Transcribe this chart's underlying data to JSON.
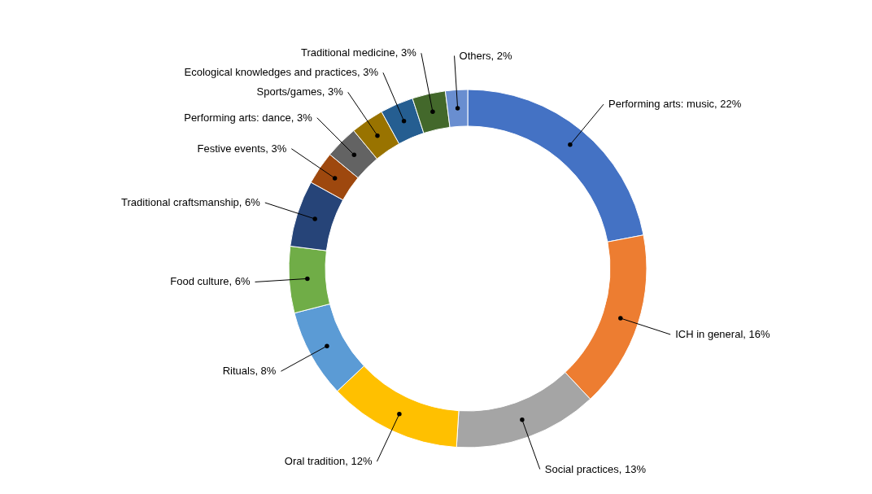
{
  "chart_data": {
    "type": "donut",
    "categories": [
      "Performing arts: music",
      "ICH in general",
      "Social practices",
      "Oral tradition",
      "Rituals",
      "Food culture",
      "Traditional craftsmanship",
      "Festive events",
      "Performing arts: dance",
      "Sports/games",
      "Ecological knowledges and practices",
      "Traditional medicine",
      "Others"
    ],
    "values": [
      22,
      16,
      13,
      12,
      8,
      6,
      6,
      3,
      3,
      3,
      3,
      3,
      2
    ],
    "value_labels": [
      "22%",
      "16%",
      "13%",
      "12%",
      "8%",
      "6%",
      "6%",
      "3%",
      "3%",
      "3%",
      "3%",
      "3%",
      "2%"
    ],
    "colors": [
      "#4472c4",
      "#ed7d31",
      "#a5a5a5",
      "#ffc000",
      "#5b9bd5",
      "#70ad47",
      "#264478",
      "#9e480e",
      "#636363",
      "#997300",
      "#255e91",
      "#43682b",
      "#698ed0"
    ]
  }
}
